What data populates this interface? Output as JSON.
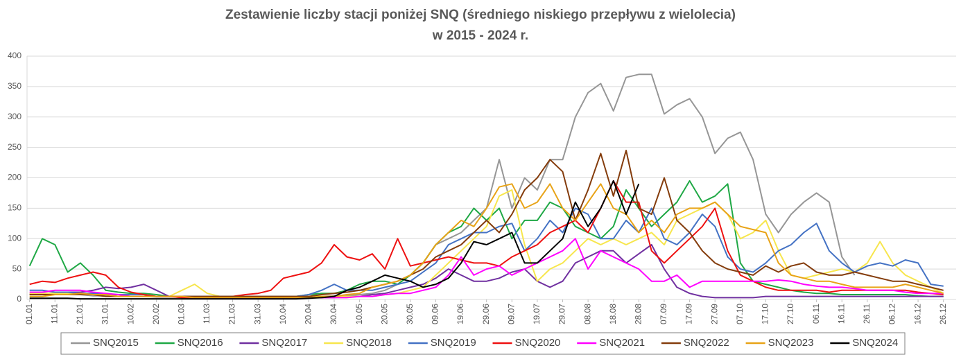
{
  "chart_data": {
    "type": "line",
    "title": [
      "Zestawienie liczby stacji poniżej SNQ (średniego niskiego przepływu z wielolecia)",
      "w 2015 - 2024 r."
    ],
    "x": [
      1,
      6,
      11,
      16,
      21,
      26,
      31,
      36,
      41,
      46,
      51,
      56,
      61,
      66,
      71,
      76,
      81,
      86,
      91,
      96,
      101,
      106,
      111,
      116,
      121,
      126,
      131,
      136,
      141,
      146,
      151,
      156,
      161,
      166,
      171,
      176,
      181,
      186,
      191,
      196,
      201,
      206,
      211,
      216,
      221,
      226,
      231,
      236,
      241,
      246,
      251,
      256,
      261,
      266,
      271,
      276,
      281,
      286,
      291,
      296,
      301,
      306,
      311,
      316,
      321,
      326,
      331,
      336,
      341,
      346,
      351,
      356,
      361
    ],
    "xlim": [
      0,
      366
    ],
    "xticks": [
      {
        "value": 1,
        "label": "01.01"
      },
      {
        "value": 11,
        "label": "11.01"
      },
      {
        "value": 21,
        "label": "21.01"
      },
      {
        "value": 31,
        "label": "31.01"
      },
      {
        "value": 41,
        "label": "10.02"
      },
      {
        "value": 51,
        "label": "20.02"
      },
      {
        "value": 61,
        "label": "01.03"
      },
      {
        "value": 71,
        "label": "11.03"
      },
      {
        "value": 81,
        "label": "21.03"
      },
      {
        "value": 91,
        "label": "31.03"
      },
      {
        "value": 101,
        "label": "10.04"
      },
      {
        "value": 111,
        "label": "20.04"
      },
      {
        "value": 121,
        "label": "30.04"
      },
      {
        "value": 131,
        "label": "10.05"
      },
      {
        "value": 141,
        "label": "20.05"
      },
      {
        "value": 151,
        "label": "30.05"
      },
      {
        "value": 161,
        "label": "09.06"
      },
      {
        "value": 171,
        "label": "19.06"
      },
      {
        "value": 181,
        "label": "29.06"
      },
      {
        "value": 191,
        "label": "09.07"
      },
      {
        "value": 201,
        "label": "19.07"
      },
      {
        "value": 211,
        "label": "29.07"
      },
      {
        "value": 221,
        "label": "08.08"
      },
      {
        "value": 231,
        "label": "18.08"
      },
      {
        "value": 241,
        "label": "28.08"
      },
      {
        "value": 251,
        "label": "07.09"
      },
      {
        "value": 261,
        "label": "17.09"
      },
      {
        "value": 271,
        "label": "27.09"
      },
      {
        "value": 281,
        "label": "07.10"
      },
      {
        "value": 291,
        "label": "17.10"
      },
      {
        "value": 301,
        "label": "27.10"
      },
      {
        "value": 311,
        "label": "06.11"
      },
      {
        "value": 321,
        "label": "16.11"
      },
      {
        "value": 331,
        "label": "26.11"
      },
      {
        "value": 341,
        "label": "06.12"
      },
      {
        "value": 351,
        "label": "16.12"
      },
      {
        "value": 361,
        "label": "26.12"
      }
    ],
    "ylim": [
      0,
      400
    ],
    "yticks": [
      0,
      50,
      100,
      150,
      200,
      250,
      300,
      350,
      400
    ],
    "grid": true,
    "legend": "bottom",
    "series": [
      {
        "name": "SNQ2015",
        "color": "#969696",
        "values": [
          10,
          10,
          8,
          8,
          8,
          6,
          6,
          5,
          5,
          5,
          4,
          4,
          4,
          4,
          3,
          3,
          3,
          3,
          3,
          3,
          4,
          4,
          5,
          5,
          6,
          6,
          8,
          10,
          15,
          25,
          40,
          60,
          90,
          100,
          110,
          130,
          150,
          230,
          150,
          200,
          180,
          230,
          230,
          300,
          340,
          355,
          310,
          365,
          370,
          370,
          305,
          320,
          330,
          300,
          240,
          265,
          275,
          230,
          140,
          110,
          140,
          160,
          175,
          160,
          70,
          40,
          null,
          null,
          null,
          null,
          null,
          null,
          null
        ]
      },
      {
        "name": "SNQ2016",
        "color": "#1fa845",
        "values": [
          55,
          100,
          90,
          45,
          60,
          40,
          15,
          12,
          10,
          10,
          8,
          5,
          5,
          5,
          5,
          5,
          5,
          5,
          5,
          5,
          5,
          5,
          8,
          10,
          10,
          15,
          25,
          30,
          30,
          25,
          40,
          60,
          90,
          110,
          120,
          150,
          130,
          150,
          100,
          130,
          130,
          160,
          150,
          120,
          110,
          100,
          120,
          180,
          150,
          120,
          140,
          160,
          195,
          160,
          170,
          190,
          60,
          30,
          25,
          20,
          15,
          12,
          10,
          10,
          8,
          8,
          8,
          8,
          8,
          8,
          6,
          5,
          5
        ]
      },
      {
        "name": "SNQ2017",
        "color": "#7030a0",
        "values": [
          8,
          10,
          10,
          12,
          12,
          15,
          20,
          18,
          20,
          25,
          15,
          5,
          5,
          5,
          5,
          5,
          5,
          3,
          3,
          3,
          3,
          3,
          3,
          3,
          3,
          5,
          5,
          8,
          10,
          15,
          20,
          25,
          35,
          50,
          40,
          30,
          30,
          35,
          45,
          50,
          30,
          20,
          30,
          60,
          70,
          80,
          80,
          60,
          75,
          90,
          50,
          20,
          10,
          5,
          3,
          3,
          3,
          3,
          5,
          5,
          5,
          5,
          5,
          5,
          5,
          5,
          5,
          5,
          5,
          5,
          5,
          5,
          5
        ]
      },
      {
        "name": "SNQ2018",
        "color": "#f7e64d",
        "values": [
          10,
          10,
          10,
          10,
          10,
          8,
          8,
          5,
          5,
          5,
          5,
          5,
          15,
          25,
          10,
          5,
          5,
          5,
          5,
          5,
          5,
          5,
          5,
          5,
          5,
          5,
          5,
          5,
          8,
          10,
          15,
          20,
          40,
          60,
          80,
          100,
          120,
          170,
          180,
          90,
          30,
          50,
          60,
          80,
          100,
          90,
          100,
          90,
          100,
          110,
          90,
          130,
          140,
          150,
          160,
          140,
          100,
          110,
          130,
          80,
          40,
          35,
          40,
          45,
          50,
          45,
          60,
          95,
          60,
          40,
          30,
          20,
          10
        ]
      },
      {
        "name": "SNQ2019",
        "color": "#4472c4",
        "values": [
          15,
          15,
          12,
          12,
          10,
          10,
          8,
          8,
          8,
          8,
          5,
          5,
          5,
          5,
          5,
          5,
          5,
          5,
          5,
          5,
          5,
          5,
          8,
          15,
          25,
          15,
          15,
          15,
          20,
          25,
          30,
          45,
          60,
          90,
          100,
          110,
          110,
          120,
          125,
          80,
          100,
          130,
          110,
          150,
          140,
          100,
          100,
          130,
          110,
          150,
          100,
          90,
          110,
          140,
          120,
          70,
          50,
          45,
          60,
          80,
          90,
          110,
          125,
          80,
          60,
          45,
          55,
          60,
          55,
          65,
          60,
          25,
          22
        ]
      },
      {
        "name": "SNQ2020",
        "color": "#ee1111",
        "values": [
          25,
          30,
          28,
          35,
          40,
          45,
          40,
          20,
          12,
          8,
          5,
          5,
          3,
          3,
          3,
          3,
          5,
          8,
          10,
          15,
          35,
          40,
          45,
          60,
          90,
          70,
          65,
          75,
          50,
          100,
          55,
          60,
          65,
          70,
          65,
          60,
          60,
          55,
          70,
          80,
          90,
          110,
          120,
          130,
          110,
          150,
          195,
          160,
          160,
          80,
          60,
          80,
          100,
          120,
          150,
          80,
          40,
          30,
          20,
          15,
          15,
          15,
          15,
          12,
          15,
          15,
          15,
          15,
          15,
          15,
          12,
          10,
          8
        ]
      },
      {
        "name": "SNQ2021",
        "color": "#ff00ff",
        "values": [
          12,
          12,
          15,
          15,
          15,
          12,
          10,
          8,
          5,
          5,
          5,
          5,
          5,
          3,
          3,
          3,
          3,
          3,
          3,
          3,
          3,
          3,
          3,
          3,
          3,
          3,
          5,
          5,
          8,
          10,
          10,
          15,
          20,
          40,
          70,
          40,
          50,
          55,
          40,
          50,
          60,
          70,
          80,
          100,
          50,
          80,
          70,
          60,
          50,
          30,
          30,
          40,
          20,
          30,
          30,
          30,
          30,
          30,
          30,
          32,
          30,
          25,
          22,
          20,
          20,
          18,
          15,
          15,
          15,
          12,
          10,
          10,
          10
        ]
      },
      {
        "name": "SNQ2022",
        "color": "#843c0c",
        "values": [
          8,
          8,
          8,
          8,
          8,
          8,
          5,
          5,
          5,
          5,
          5,
          5,
          5,
          5,
          5,
          5,
          5,
          5,
          5,
          5,
          5,
          5,
          5,
          8,
          10,
          12,
          15,
          20,
          25,
          30,
          40,
          50,
          70,
          80,
          90,
          110,
          130,
          110,
          140,
          180,
          200,
          230,
          210,
          130,
          180,
          240,
          170,
          245,
          150,
          140,
          200,
          130,
          110,
          80,
          60,
          50,
          45,
          40,
          55,
          45,
          55,
          60,
          45,
          40,
          40,
          45,
          40,
          35,
          30,
          30,
          25,
          20,
          15
        ]
      },
      {
        "name": "SNQ2023",
        "color": "#e8a317",
        "values": [
          5,
          5,
          8,
          8,
          10,
          8,
          8,
          5,
          5,
          5,
          5,
          5,
          5,
          3,
          3,
          3,
          3,
          3,
          3,
          3,
          3,
          3,
          3,
          5,
          5,
          8,
          10,
          20,
          25,
          30,
          40,
          60,
          90,
          110,
          130,
          120,
          150,
          185,
          190,
          150,
          160,
          190,
          150,
          130,
          160,
          190,
          150,
          140,
          110,
          130,
          110,
          140,
          150,
          150,
          160,
          140,
          120,
          115,
          110,
          60,
          40,
          35,
          30,
          30,
          25,
          20,
          20,
          20,
          20,
          25,
          20,
          15,
          10
        ]
      },
      {
        "name": "SNQ2024",
        "color": "#000000",
        "values": [
          2,
          2,
          2,
          2,
          1,
          1,
          1,
          1,
          1,
          1,
          1,
          1,
          1,
          1,
          1,
          1,
          1,
          1,
          1,
          1,
          1,
          1,
          2,
          3,
          5,
          15,
          20,
          30,
          40,
          35,
          30,
          20,
          25,
          35,
          60,
          95,
          90,
          100,
          110,
          60,
          60,
          80,
          100,
          160,
          120,
          150,
          195,
          140,
          190,
          null,
          null,
          null,
          null,
          null,
          null,
          null,
          null,
          null,
          null,
          null,
          null,
          null,
          null,
          null,
          null,
          null,
          null,
          null,
          null,
          null,
          null,
          null,
          null
        ]
      }
    ]
  }
}
